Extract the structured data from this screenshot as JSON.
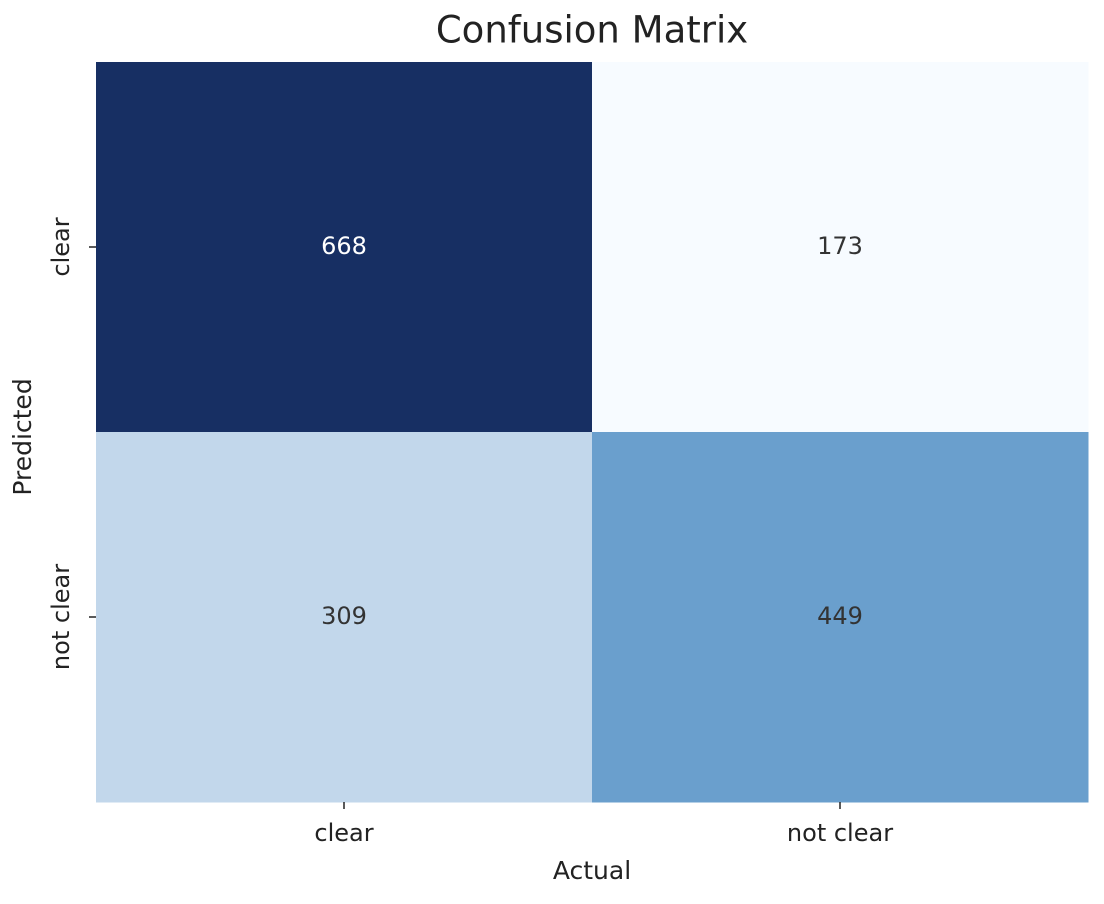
{
  "chart_data": {
    "type": "heatmap",
    "title": "Confusion Matrix",
    "x_label": "Actual",
    "y_label": "Predicted",
    "x_categories": [
      "clear",
      "not clear"
    ],
    "y_categories": [
      "clear",
      "not clear"
    ],
    "values": [
      [
        668,
        173
      ],
      [
        309,
        449
      ]
    ],
    "colors": [
      [
        "#172f63",
        "#f7fbff"
      ],
      [
        "#c2d7eb",
        "#6a9fcd"
      ]
    ]
  }
}
